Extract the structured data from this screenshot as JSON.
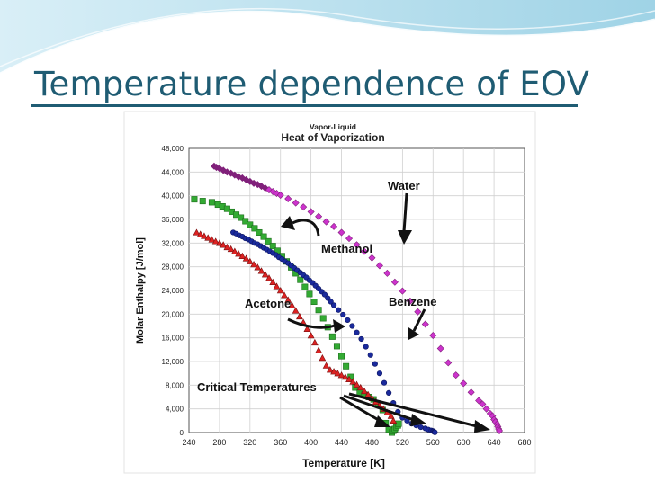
{
  "slide": {
    "title": "Temperature dependence of EOV"
  },
  "colors": {
    "title": "#1f5c73",
    "water": "#cc33cc",
    "water_dark": "#80207a",
    "methanol": "#33aa33",
    "benzene": "#1a2a9c",
    "acetone": "#dd2222"
  },
  "chart_data": {
    "type": "scatter",
    "subtitle": "Vapor-Liquid",
    "title": "Heat of Vaporization",
    "xlabel": "Temperature [K]",
    "ylabel": "Molar Enthalpy [J/mol]",
    "xlim": [
      240,
      680
    ],
    "ylim": [
      0,
      48000
    ],
    "xticks": [
      "240",
      "280",
      "320",
      "360",
      "400",
      "440",
      "480",
      "520",
      "560",
      "600",
      "640",
      "680"
    ],
    "yticks": [
      "0",
      "4,000",
      "8,000",
      "12,000",
      "16,000",
      "20,000",
      "24,000",
      "28,000",
      "32,000",
      "36,000",
      "40,000",
      "44,000",
      "48,000"
    ],
    "grid": true,
    "legend": "none",
    "series": [
      {
        "name": "Water",
        "marker": "diamond",
        "x": [
          273,
          276,
          280,
          285,
          290,
          295,
          300,
          305,
          310,
          315,
          320,
          325,
          330,
          335,
          340,
          345,
          350,
          355,
          360,
          370,
          380,
          390,
          400,
          410,
          420,
          430,
          440,
          450,
          460,
          470,
          480,
          490,
          500,
          510,
          520,
          530,
          540,
          550,
          560,
          570,
          580,
          590,
          600,
          610,
          620,
          625,
          630,
          635,
          638,
          640,
          642,
          644,
          645,
          646,
          647
        ],
        "y": [
          45000,
          44800,
          44600,
          44300,
          44000,
          43800,
          43500,
          43200,
          43000,
          42700,
          42400,
          42100,
          41900,
          41600,
          41300,
          41000,
          40700,
          40400,
          40100,
          39500,
          38800,
          38100,
          37300,
          36500,
          35600,
          34800,
          33800,
          32800,
          31700,
          30600,
          29500,
          28200,
          26900,
          25400,
          23900,
          22200,
          20400,
          18300,
          16400,
          14200,
          11800,
          9700,
          8300,
          6800,
          5400,
          4800,
          4000,
          3200,
          2800,
          2200,
          1800,
          1400,
          1000,
          600,
          300
        ]
      },
      {
        "name": "Methanol",
        "marker": "square",
        "x": [
          247,
          258,
          270,
          278,
          284,
          290,
          296,
          302,
          308,
          314,
          320,
          326,
          332,
          338,
          344,
          350,
          356,
          362,
          368,
          374,
          380,
          386,
          392,
          398,
          404,
          410,
          416,
          422,
          428,
          434,
          440,
          446,
          452,
          458,
          464,
          470,
          476,
          482,
          488,
          494,
          498,
          502,
          506,
          508,
          510,
          512,
          514,
          515
        ],
        "y": [
          39400,
          39100,
          38900,
          38500,
          38200,
          37800,
          37300,
          36800,
          36300,
          35700,
          35100,
          34500,
          33800,
          33100,
          32300,
          31500,
          30700,
          29800,
          28900,
          27900,
          26900,
          25800,
          24600,
          23400,
          22100,
          20700,
          19300,
          17800,
          16200,
          14600,
          12900,
          11200,
          9400,
          7600,
          6800,
          6400,
          6000,
          5600,
          4800,
          3800,
          1600,
          500,
          0,
          300,
          600,
          900,
          1200,
          1500
        ]
      },
      {
        "name": "Benzene",
        "marker": "circle",
        "x": [
          298,
          302,
          306,
          310,
          314,
          318,
          322,
          326,
          330,
          334,
          338,
          342,
          346,
          350,
          354,
          358,
          362,
          366,
          370,
          374,
          378,
          382,
          386,
          390,
          394,
          398,
          402,
          406,
          410,
          414,
          418,
          422,
          426,
          430,
          436,
          442,
          448,
          454,
          460,
          466,
          472,
          478,
          484,
          490,
          496,
          502,
          508,
          514,
          520,
          526,
          532,
          538,
          544,
          550,
          554,
          558,
          560,
          561,
          562,
          562.5
        ],
        "y": [
          33800,
          33600,
          33300,
          33100,
          32800,
          32600,
          32300,
          32000,
          31800,
          31500,
          31200,
          30900,
          30600,
          30300,
          30000,
          29600,
          29300,
          28900,
          28600,
          28200,
          27800,
          27400,
          27000,
          26600,
          26200,
          25700,
          25300,
          24800,
          24300,
          23800,
          23300,
          22700,
          22100,
          21500,
          20700,
          19900,
          19000,
          18000,
          16900,
          15800,
          14500,
          13100,
          11600,
          10000,
          8400,
          6700,
          5000,
          3500,
          2500,
          2000,
          1500,
          1200,
          900,
          700,
          500,
          350,
          250,
          150,
          80,
          30
        ]
      },
      {
        "name": "Acetone",
        "marker": "triangle",
        "x": [
          250,
          255,
          260,
          265,
          270,
          275,
          280,
          285,
          290,
          295,
          300,
          305,
          310,
          315,
          320,
          325,
          330,
          335,
          340,
          345,
          350,
          355,
          360,
          365,
          370,
          375,
          380,
          385,
          390,
          395,
          400,
          405,
          410,
          415,
          420,
          425,
          430,
          435,
          440,
          445,
          450,
          455,
          460,
          465,
          470,
          475,
          480,
          485,
          490,
          495,
          500,
          505,
          508
        ],
        "y": [
          33800,
          33500,
          33200,
          32900,
          32600,
          32300,
          32000,
          31700,
          31300,
          31000,
          30600,
          30200,
          29800,
          29400,
          28900,
          28400,
          27900,
          27300,
          26700,
          26100,
          25400,
          24700,
          24000,
          23200,
          22400,
          21500,
          20600,
          19600,
          18600,
          17500,
          16400,
          15200,
          13900,
          12600,
          11300,
          10600,
          10300,
          10000,
          9700,
          9400,
          9000,
          8600,
          8100,
          7600,
          7000,
          6400,
          5800,
          5200,
          4600,
          4000,
          3400,
          2800,
          2000
        ]
      }
    ],
    "annotations": [
      "Water",
      "Methanol",
      "Benzene",
      "Acetone",
      "Critical Temperatures"
    ]
  }
}
